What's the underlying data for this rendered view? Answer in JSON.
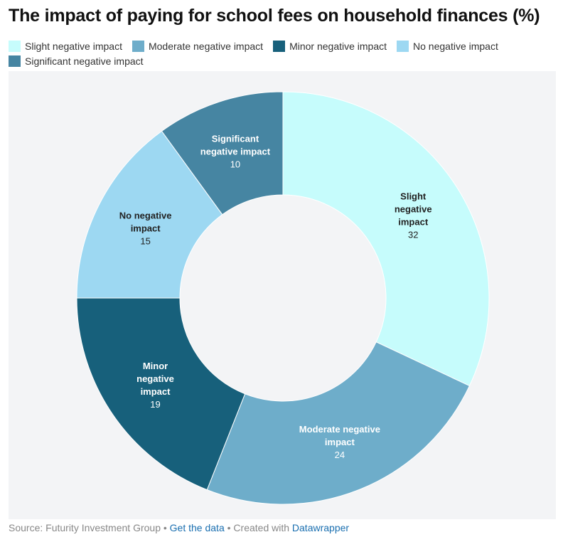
{
  "title": "The impact of paying for school fees on household finances (%)",
  "legend": [
    {
      "label": "Slight negative impact",
      "color": "#c6fcfc"
    },
    {
      "label": "Moderate negative impact",
      "color": "#6eadca"
    },
    {
      "label": "Minor negative impact",
      "color": "#17607b"
    },
    {
      "label": "No negative impact",
      "color": "#9dd8f2"
    },
    {
      "label": "Significant negative impact",
      "color": "#4685a2"
    }
  ],
  "chart_data": {
    "type": "pie",
    "donut": true,
    "title": "The impact of paying for school fees on household finances (%)",
    "slices": [
      {
        "name": "Slight negative impact",
        "label_lines": [
          "Slight",
          "negative",
          "impact"
        ],
        "value": 32,
        "color": "#c6fcfc",
        "text_color": "#222222"
      },
      {
        "name": "Moderate negative impact",
        "label_lines": [
          "Moderate negative",
          "impact"
        ],
        "value": 24,
        "color": "#6eadca",
        "text_color": "#ffffff"
      },
      {
        "name": "Minor negative impact",
        "label_lines": [
          "Minor",
          "negative",
          "impact"
        ],
        "value": 19,
        "color": "#17607b",
        "text_color": "#ffffff"
      },
      {
        "name": "No negative impact",
        "label_lines": [
          "No negative",
          "impact"
        ],
        "value": 15,
        "color": "#9dd8f2",
        "text_color": "#222222"
      },
      {
        "name": "Significant negative impact",
        "label_lines": [
          "Significant",
          "negative impact"
        ],
        "value": 10,
        "color": "#4685a2",
        "text_color": "#ffffff"
      }
    ],
    "legend_position": "top"
  },
  "footer": {
    "source_text": "Source: Futurity Investment Group",
    "separator": " • ",
    "get_data_label": "Get the data",
    "created_with_text": "Created with",
    "datawrapper_label": "Datawrapper"
  }
}
